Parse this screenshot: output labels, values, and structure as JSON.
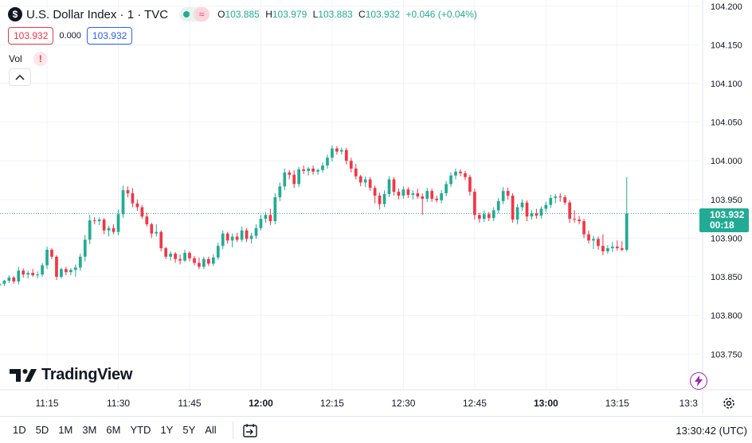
{
  "header": {
    "symbol_icon": "dollar-icon",
    "symbol_glyph": "$",
    "title": "U.S. Dollar Index · 1 · TVC",
    "wave_glyph": "≈",
    "ohlc": {
      "o_label": "O",
      "o_value": "103.885",
      "h_label": "H",
      "h_value": "103.979",
      "l_label": "L",
      "l_value": "103.883",
      "c_label": "C",
      "c_value": "103.932",
      "change": "+0.046 (+0.04%)"
    }
  },
  "quotes": {
    "bid": "103.932",
    "spread": "0.000",
    "ask": "103.932"
  },
  "indicator": {
    "vol_label": "Vol",
    "warn_glyph": "!"
  },
  "branding": {
    "logo_text": "TradingView"
  },
  "last_price": {
    "price": "103.932",
    "countdown": "00:18"
  },
  "bottom_bar": {
    "ranges": [
      "1D",
      "5D",
      "1M",
      "3M",
      "6M",
      "YTD",
      "1Y",
      "5Y",
      "All"
    ],
    "clock": "13:30:42 (UTC)"
  },
  "colors": {
    "up": "#22ab94",
    "down": "#f23645",
    "grid": "#f0f3fa",
    "text": "#131722"
  },
  "chart_data": {
    "type": "candlestick",
    "y_ticks": [
      "104.200",
      "104.150",
      "104.100",
      "104.050",
      "104.000",
      "103.950",
      "103.900",
      "103.850",
      "103.800",
      "103.750"
    ],
    "x_ticks": [
      "11:15",
      "11:30",
      "11:45",
      "12:00",
      "12:15",
      "12:30",
      "12:45",
      "13:00",
      "13:15",
      "13:3"
    ],
    "x_tick_minutes": [
      675,
      690,
      705,
      720,
      735,
      750,
      765,
      780,
      795,
      810
    ],
    "ylim": [
      103.704,
      104.208
    ],
    "xlim_minutes": [
      665.1,
      812.3
    ],
    "last_price_value": 103.932,
    "start_minute": 665,
    "interval_minutes": 1,
    "ohlc": [
      [
        103.839,
        103.844,
        103.834,
        103.841
      ],
      [
        103.841,
        103.846,
        103.838,
        103.845
      ],
      [
        103.845,
        103.852,
        103.842,
        103.849
      ],
      [
        103.849,
        103.851,
        103.841,
        103.844
      ],
      [
        103.844,
        103.863,
        103.84,
        103.858
      ],
      [
        103.858,
        103.861,
        103.849,
        103.853
      ],
      [
        103.853,
        103.858,
        103.848,
        103.855
      ],
      [
        103.855,
        103.86,
        103.85,
        103.852
      ],
      [
        103.852,
        103.857,
        103.848,
        103.853
      ],
      [
        103.853,
        103.868,
        103.85,
        103.865
      ],
      [
        103.865,
        103.889,
        103.86,
        103.885
      ],
      [
        103.885,
        103.887,
        103.873,
        103.876
      ],
      [
        103.876,
        103.878,
        103.846,
        103.85
      ],
      [
        103.85,
        103.862,
        103.848,
        103.86
      ],
      [
        103.86,
        103.863,
        103.852,
        103.856
      ],
      [
        103.856,
        103.861,
        103.852,
        103.859
      ],
      [
        103.859,
        103.866,
        103.85,
        103.862
      ],
      [
        103.862,
        103.88,
        103.858,
        103.876
      ],
      [
        103.876,
        103.904,
        103.87,
        103.898
      ],
      [
        103.898,
        103.93,
        103.892,
        103.923
      ],
      [
        103.923,
        103.927,
        103.918,
        103.922
      ],
      [
        103.922,
        103.927,
        103.917,
        103.924
      ],
      [
        103.924,
        103.926,
        103.905,
        103.91
      ],
      [
        103.91,
        103.916,
        103.902,
        103.913
      ],
      [
        103.913,
        103.918,
        103.905,
        103.908
      ],
      [
        103.908,
        103.937,
        103.904,
        103.931
      ],
      [
        103.931,
        103.968,
        103.926,
        103.962
      ],
      [
        103.962,
        103.967,
        103.953,
        103.958
      ],
      [
        103.958,
        103.965,
        103.94,
        103.945
      ],
      [
        103.945,
        103.95,
        103.935,
        103.94
      ],
      [
        103.94,
        103.943,
        103.925,
        103.928
      ],
      [
        103.928,
        103.933,
        103.915,
        103.918
      ],
      [
        103.918,
        103.92,
        103.9,
        103.906
      ],
      [
        103.906,
        103.918,
        103.902,
        103.908
      ],
      [
        103.908,
        103.91,
        103.883,
        103.887
      ],
      [
        103.887,
        103.889,
        103.873,
        103.876
      ],
      [
        103.876,
        103.883,
        103.871,
        103.88
      ],
      [
        103.88,
        103.882,
        103.868,
        103.873
      ],
      [
        103.873,
        103.879,
        103.866,
        103.871
      ],
      [
        103.871,
        103.885,
        103.869,
        103.881
      ],
      [
        103.881,
        103.883,
        103.87,
        103.874
      ],
      [
        103.874,
        103.877,
        103.865,
        103.868
      ],
      [
        103.868,
        103.875,
        103.86,
        103.863
      ],
      [
        103.863,
        103.876,
        103.86,
        103.873
      ],
      [
        103.873,
        103.876,
        103.864,
        103.867
      ],
      [
        103.867,
        103.879,
        103.864,
        103.875
      ],
      [
        103.875,
        103.894,
        103.872,
        103.89
      ],
      [
        103.89,
        103.91,
        103.886,
        103.906
      ],
      [
        103.906,
        103.908,
        103.893,
        103.897
      ],
      [
        103.897,
        103.906,
        103.888,
        103.902
      ],
      [
        103.902,
        103.907,
        103.895,
        103.898
      ],
      [
        103.898,
        103.915,
        103.895,
        103.91
      ],
      [
        103.91,
        103.913,
        103.895,
        103.899
      ],
      [
        103.899,
        103.907,
        103.893,
        103.903
      ],
      [
        103.903,
        103.918,
        103.899,
        103.913
      ],
      [
        103.913,
        103.93,
        103.91,
        103.925
      ],
      [
        103.925,
        103.934,
        103.92,
        103.93
      ],
      [
        103.93,
        103.938,
        103.917,
        103.922
      ],
      [
        103.922,
        103.958,
        103.918,
        103.953
      ],
      [
        103.953,
        103.972,
        103.948,
        103.967
      ],
      [
        103.967,
        103.99,
        103.962,
        103.985
      ],
      [
        103.985,
        103.988,
        103.976,
        103.982
      ],
      [
        103.982,
        103.988,
        103.965,
        103.97
      ],
      [
        103.97,
        103.992,
        103.966,
        103.989
      ],
      [
        103.989,
        103.994,
        103.983,
        103.987
      ],
      [
        103.987,
        103.992,
        103.981,
        103.99
      ],
      [
        103.99,
        103.994,
        103.982,
        103.986
      ],
      [
        103.986,
        103.99,
        103.982,
        103.988
      ],
      [
        103.988,
        103.998,
        103.985,
        103.994
      ],
      [
        103.994,
        104.008,
        103.99,
        104.004
      ],
      [
        104.004,
        104.02,
        103.999,
        104.016
      ],
      [
        104.016,
        104.019,
        104.008,
        104.012
      ],
      [
        104.012,
        104.017,
        104.008,
        104.014
      ],
      [
        104.014,
        104.017,
        103.995,
        104.0
      ],
      [
        104.0,
        104.004,
        103.985,
        103.99
      ],
      [
        103.99,
        103.996,
        103.976,
        103.98
      ],
      [
        103.98,
        103.982,
        103.967,
        103.972
      ],
      [
        103.972,
        103.98,
        103.966,
        103.976
      ],
      [
        103.976,
        103.979,
        103.961,
        103.965
      ],
      [
        103.965,
        103.968,
        103.945,
        103.955
      ],
      [
        103.955,
        103.959,
        103.937,
        103.944
      ],
      [
        103.944,
        103.962,
        103.94,
        103.957
      ],
      [
        103.957,
        103.98,
        103.953,
        103.976
      ],
      [
        103.976,
        103.979,
        103.955,
        103.96
      ],
      [
        103.96,
        103.964,
        103.95,
        103.955
      ],
      [
        103.955,
        103.967,
        103.951,
        103.963
      ],
      [
        103.963,
        103.966,
        103.952,
        103.956
      ],
      [
        103.956,
        103.962,
        103.95,
        103.958
      ],
      [
        103.958,
        103.964,
        103.951,
        103.954
      ],
      [
        103.954,
        103.958,
        103.93,
        103.951
      ],
      [
        103.951,
        103.965,
        103.947,
        103.961
      ],
      [
        103.961,
        103.964,
        103.947,
        103.951
      ],
      [
        103.951,
        103.955,
        103.946,
        103.949
      ],
      [
        103.949,
        103.962,
        103.945,
        103.958
      ],
      [
        103.958,
        103.974,
        103.954,
        103.97
      ],
      [
        103.97,
        103.985,
        103.966,
        103.981
      ],
      [
        103.981,
        103.99,
        103.976,
        103.986
      ],
      [
        103.986,
        103.989,
        103.98,
        103.984
      ],
      [
        103.984,
        103.987,
        103.975,
        103.979
      ],
      [
        103.979,
        103.982,
        103.955,
        103.96
      ],
      [
        103.96,
        103.964,
        103.924,
        103.93
      ],
      [
        103.93,
        103.933,
        103.92,
        103.925
      ],
      [
        103.925,
        103.936,
        103.921,
        103.931
      ],
      [
        103.931,
        103.934,
        103.922,
        103.926
      ],
      [
        103.926,
        103.94,
        103.922,
        103.936
      ],
      [
        103.936,
        103.952,
        103.932,
        103.948
      ],
      [
        103.948,
        103.966,
        103.944,
        103.961
      ],
      [
        103.961,
        103.965,
        103.95,
        103.955
      ],
      [
        103.955,
        103.958,
        103.92,
        103.924
      ],
      [
        103.924,
        103.944,
        103.918,
        103.94
      ],
      [
        103.94,
        103.95,
        103.935,
        103.946
      ],
      [
        103.946,
        103.949,
        103.922,
        103.928
      ],
      [
        103.928,
        103.936,
        103.924,
        103.932
      ],
      [
        103.932,
        103.938,
        103.925,
        103.929
      ],
      [
        103.929,
        103.941,
        103.925,
        103.938
      ],
      [
        103.938,
        103.947,
        103.934,
        103.943
      ],
      [
        103.943,
        103.956,
        103.939,
        103.952
      ],
      [
        103.952,
        103.957,
        103.945,
        103.954
      ],
      [
        103.954,
        103.958,
        103.947,
        103.953
      ],
      [
        103.953,
        103.956,
        103.943,
        103.946
      ],
      [
        103.946,
        103.949,
        103.92,
        103.925
      ],
      [
        103.925,
        103.936,
        103.92,
        103.924
      ],
      [
        103.924,
        103.929,
        103.918,
        103.922
      ],
      [
        103.922,
        103.925,
        103.9,
        103.905
      ],
      [
        103.905,
        103.91,
        103.893,
        103.897
      ],
      [
        103.897,
        103.903,
        103.886,
        103.899
      ],
      [
        103.899,
        103.902,
        103.885,
        103.89
      ],
      [
        103.89,
        103.905,
        103.878,
        103.883
      ],
      [
        103.883,
        103.891,
        103.88,
        103.887
      ],
      [
        103.887,
        103.895,
        103.882,
        103.889
      ],
      [
        103.889,
        103.897,
        103.884,
        103.887
      ],
      [
        103.887,
        103.896,
        103.883,
        103.885
      ],
      [
        103.885,
        103.979,
        103.883,
        103.932
      ]
    ]
  }
}
